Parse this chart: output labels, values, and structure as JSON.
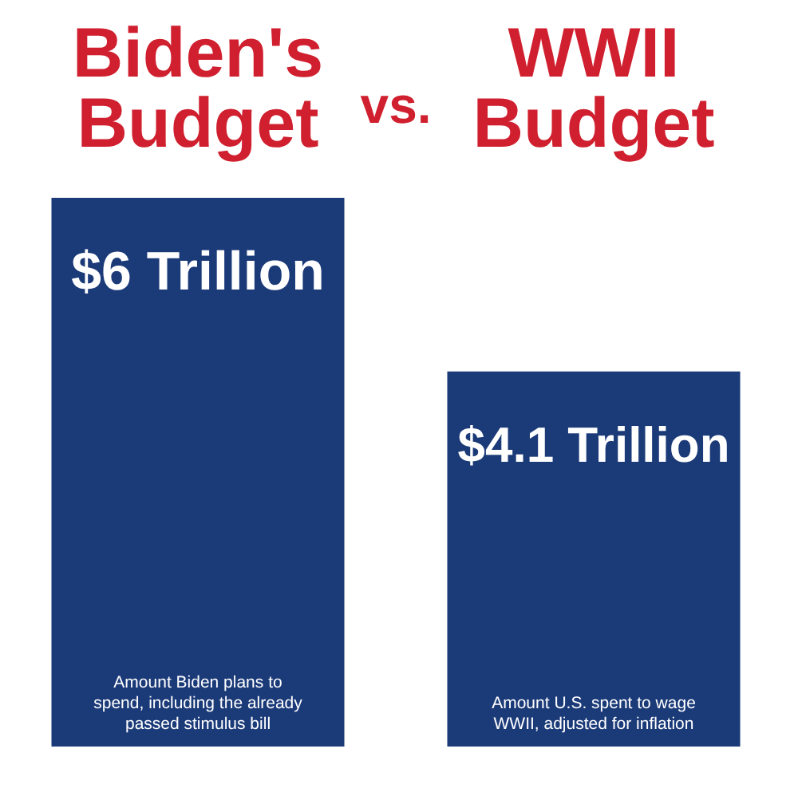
{
  "chart_data": {
    "type": "bar",
    "categories": [
      "Biden's Budget",
      "WWII Budget"
    ],
    "values": [
      6,
      4.1
    ],
    "color": "#1b3a78",
    "value_labels": [
      "$6 Trillion",
      "$4.1 Trillion"
    ],
    "annotations": [
      "vs.",
      "Amount Biden plans to spend, including the already passed stimulus bill",
      "Amount U.S. spent to wage WWII, adjusted for inflation"
    ]
  }
}
